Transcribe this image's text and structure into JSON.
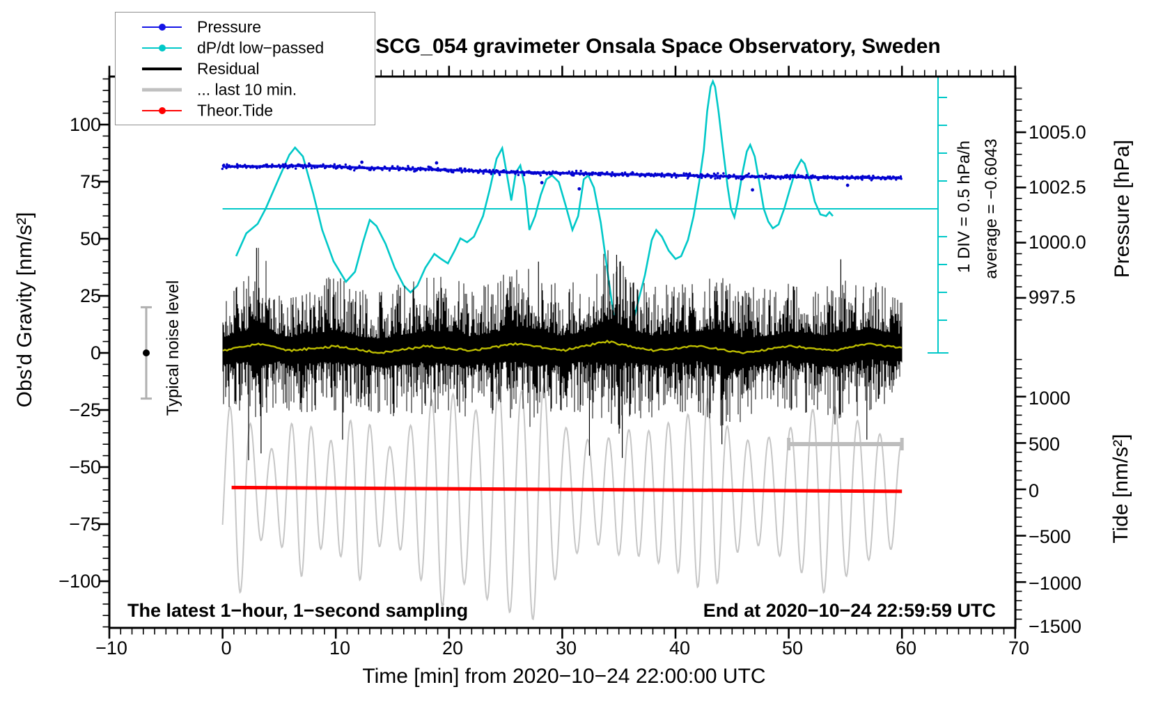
{
  "title": "SCG_054 gravimeter Onsala Space Observatory, Sweden",
  "legend": {
    "items": [
      {
        "label": "Pressure",
        "color": "#1414e6",
        "marker": "dot"
      },
      {
        "label": "dP/dt low−passed",
        "color": "#00c8c8",
        "marker": "dot"
      },
      {
        "label": "Residual",
        "color": "#000000",
        "marker": "line"
      },
      {
        "label": "... last 10 min.",
        "color": "#c0c0c0",
        "marker": "line"
      },
      {
        "label": "Theor.Tide",
        "color": "#ff0000",
        "marker": "dot"
      }
    ]
  },
  "axes": {
    "x": {
      "title": "Time [min] from 2020−10−24 22:00:00 UTC",
      "tick_labels": [
        "−10",
        "0",
        "10",
        "20",
        "30",
        "40",
        "50",
        "60",
        "70"
      ],
      "range": [
        -10,
        70
      ],
      "major_interval": 10,
      "minor_interval": 1
    },
    "gravity": {
      "title": "Obs'd Gravity [nm/s²]",
      "tick_labels": [
        "100",
        "75",
        "50",
        "25",
        "0",
        "−25",
        "−50",
        "−75",
        "−100"
      ],
      "range": [
        -121,
        121
      ],
      "major_interval": 25,
      "minor_interval": 5
    },
    "pressure": {
      "title": "Pressure [hPa]",
      "tick_labels": [
        "1005.0",
        "1002.5",
        "1000.0",
        "997.5"
      ],
      "major_interval": 2.5,
      "minor_interval": 0.5
    },
    "tide": {
      "title": "Tide [nm/s²]",
      "tick_labels": [
        "1000",
        "500",
        "0",
        "−500",
        "−1000",
        "−1500"
      ],
      "major_interval": 500,
      "minor_interval": 100
    }
  },
  "annotations": {
    "noise_level_label": "Typical noise level",
    "div_label": "1 DIV = 0.5 hPa/h",
    "average_label": "average = −0.6043",
    "sampling_label": "The latest 1−hour, 1−second sampling",
    "end_label": "End at 2020−10−24 22:59:59 UTC"
  },
  "colors": {
    "pressure_line": "#1414e6",
    "pressure_dots": "#0000cd",
    "dpdt": "#00c8c8",
    "residual": "#000000",
    "residual_lowpass": "#bcbc00",
    "last10": "#c6c6c6",
    "tide": "#ff0000",
    "noise_bar": "#b0b0b0",
    "scale_bar": "#bdbdbd",
    "frame": "#000000"
  },
  "chart_data": {
    "type": "line",
    "xlabel": "Time [min] from 2020-10-24 22:00:00 UTC",
    "x_range": [
      -10,
      70
    ],
    "gravity_range": [
      -121,
      121
    ],
    "pressure_ticks": [
      1005.0,
      1002.5,
      1000.0,
      997.5
    ],
    "tide_ticks": [
      1000,
      500,
      0,
      -500,
      -1000,
      -1500
    ],
    "dpdt_div_hpa_per_h": 0.5,
    "dpdt_average_hpa_per_h": -0.6043,
    "noise_level_nm_s2": 20,
    "last10_bar_minutes": [
      50,
      60
    ],
    "series": {
      "pressure_hpa": {
        "t_start": 0,
        "t_step": 1,
        "values": [
          1003.44,
          1003.45,
          1003.46,
          1003.45,
          1003.46,
          1003.47,
          1003.47,
          1003.48,
          1003.48,
          1003.47,
          1003.45,
          1003.42,
          1003.4,
          1003.38,
          1003.37,
          1003.36,
          1003.35,
          1003.34,
          1003.33,
          1003.31,
          1003.29,
          1003.27,
          1003.25,
          1003.23,
          1003.21,
          1003.19,
          1003.18,
          1003.18,
          1003.17,
          1003.16,
          1003.15,
          1003.14,
          1003.13,
          1003.12,
          1003.11,
          1003.1,
          1003.09,
          1003.08,
          1003.07,
          1003.06,
          1003.05,
          1003.04,
          1003.03,
          1003.02,
          1003.01,
          1003.0,
          1002.99,
          1002.99,
          1002.98,
          1002.98,
          1002.97,
          1002.97,
          1002.96,
          1002.96,
          1002.95,
          1002.95,
          1002.94,
          1002.94,
          1002.93,
          1002.93,
          1002.93
        ],
        "outlier_dots_t_dhpa": [
          [
            12.3,
            0.25
          ],
          [
            18.9,
            0.3
          ],
          [
            28.2,
            -0.45
          ],
          [
            31.5,
            -0.7
          ],
          [
            46.8,
            -0.6
          ],
          [
            55.2,
            -0.35
          ]
        ]
      },
      "dpdt_hpa_per_h": [
        [
          1.2,
          -0.85
        ],
        [
          2.1,
          -0.44
        ],
        [
          3.1,
          -0.27
        ],
        [
          3.8,
          0.0
        ],
        [
          5.0,
          0.56
        ],
        [
          5.9,
          0.97
        ],
        [
          6.4,
          1.1
        ],
        [
          7.1,
          0.94
        ],
        [
          8.0,
          0.28
        ],
        [
          8.8,
          -0.38
        ],
        [
          9.8,
          -0.94
        ],
        [
          10.9,
          -1.31
        ],
        [
          11.7,
          -1.13
        ],
        [
          12.4,
          -0.6
        ],
        [
          13.0,
          -0.2
        ],
        [
          13.6,
          -0.31
        ],
        [
          14.4,
          -0.63
        ],
        [
          15.2,
          -1.06
        ],
        [
          16.0,
          -1.38
        ],
        [
          16.6,
          -1.5
        ],
        [
          17.2,
          -1.38
        ],
        [
          17.9,
          -1.06
        ],
        [
          18.7,
          -0.81
        ],
        [
          19.3,
          -0.9
        ],
        [
          19.9,
          -0.98
        ],
        [
          20.5,
          -0.75
        ],
        [
          21.0,
          -0.53
        ],
        [
          21.6,
          -0.6
        ],
        [
          22.2,
          -0.5
        ],
        [
          23.0,
          -0.13
        ],
        [
          23.6,
          0.35
        ],
        [
          24.2,
          0.9
        ],
        [
          24.7,
          1.09
        ],
        [
          25.1,
          0.63
        ],
        [
          25.5,
          0.15
        ],
        [
          25.9,
          0.65
        ],
        [
          26.3,
          0.78
        ],
        [
          26.7,
          0.4
        ],
        [
          27.1,
          -0.38
        ],
        [
          27.6,
          -0.13
        ],
        [
          28.1,
          0.25
        ],
        [
          28.6,
          0.53
        ],
        [
          29.1,
          0.6
        ],
        [
          29.7,
          0.48
        ],
        [
          30.3,
          0.06
        ],
        [
          30.9,
          -0.38
        ],
        [
          31.4,
          -0.13
        ],
        [
          31.9,
          0.53
        ],
        [
          32.3,
          0.6
        ],
        [
          32.8,
          0.38
        ],
        [
          33.4,
          -0.25
        ],
        [
          34.0,
          -1.13
        ],
        [
          34.6,
          -2.0
        ],
        [
          35.1,
          -2.38
        ],
        [
          35.5,
          -2.46
        ],
        [
          36.0,
          -2.25
        ],
        [
          36.6,
          -1.75
        ],
        [
          37.3,
          -1.19
        ],
        [
          37.9,
          -0.56
        ],
        [
          38.3,
          -0.38
        ],
        [
          38.8,
          -0.5
        ],
        [
          39.4,
          -0.75
        ],
        [
          40.0,
          -0.9
        ],
        [
          40.5,
          -0.85
        ],
        [
          41.1,
          -0.56
        ],
        [
          41.6,
          -0.13
        ],
        [
          42.1,
          0.48
        ],
        [
          42.5,
          1.06
        ],
        [
          42.8,
          1.75
        ],
        [
          43.1,
          2.19
        ],
        [
          43.3,
          2.29
        ],
        [
          43.5,
          2.19
        ],
        [
          43.8,
          1.75
        ],
        [
          44.2,
          1.06
        ],
        [
          44.6,
          0.4
        ],
        [
          44.9,
          0.0
        ],
        [
          45.2,
          -0.15
        ],
        [
          45.5,
          0.13
        ],
        [
          45.9,
          0.63
        ],
        [
          46.3,
          1.03
        ],
        [
          46.6,
          1.15
        ],
        [
          47.0,
          0.94
        ],
        [
          47.4,
          0.48
        ],
        [
          47.8,
          0.0
        ],
        [
          48.2,
          -0.23
        ],
        [
          48.6,
          -0.35
        ],
        [
          49.1,
          -0.28
        ],
        [
          49.6,
          0.0
        ],
        [
          50.1,
          0.35
        ],
        [
          50.6,
          0.69
        ],
        [
          51.1,
          0.88
        ],
        [
          51.4,
          0.81
        ],
        [
          51.9,
          0.48
        ],
        [
          52.3,
          0.13
        ],
        [
          52.8,
          -0.1
        ],
        [
          53.3,
          -0.13
        ],
        [
          53.6,
          -0.06
        ],
        [
          53.9,
          -0.13
        ]
      ],
      "residual_nm_s2": {
        "mean": 2,
        "seed": 7,
        "envelope_halfwidth": [
          [
            0,
            26
          ],
          [
            2,
            30
          ],
          [
            3,
            46
          ],
          [
            4,
            36
          ],
          [
            5,
            26
          ],
          [
            7,
            28
          ],
          [
            9,
            30
          ],
          [
            10,
            32
          ],
          [
            12,
            26
          ],
          [
            14,
            28
          ],
          [
            16,
            30
          ],
          [
            18,
            30
          ],
          [
            20,
            32
          ],
          [
            22,
            28
          ],
          [
            24,
            30
          ],
          [
            26,
            34
          ],
          [
            27,
            36
          ],
          [
            28,
            34
          ],
          [
            30,
            28
          ],
          [
            32,
            30
          ],
          [
            34,
            44
          ],
          [
            35,
            40
          ],
          [
            36,
            32
          ],
          [
            38,
            30
          ],
          [
            40,
            28
          ],
          [
            42,
            30
          ],
          [
            44,
            34
          ],
          [
            45,
            32
          ],
          [
            47,
            28
          ],
          [
            49,
            26
          ],
          [
            51,
            30
          ],
          [
            53,
            28
          ],
          [
            54,
            34
          ],
          [
            55,
            32
          ],
          [
            57,
            30
          ],
          [
            59,
            28
          ],
          [
            60,
            26
          ]
        ],
        "spikes_t_value": [
          [
            2.3,
            -47
          ],
          [
            3.0,
            46
          ],
          [
            3.4,
            -44
          ],
          [
            10.6,
            -38
          ],
          [
            27.9,
            40
          ],
          [
            32.4,
            -45
          ],
          [
            34.8,
            43
          ],
          [
            35.3,
            -46
          ],
          [
            44.1,
            -40
          ],
          [
            54.6,
            41
          ],
          [
            56.9,
            -38
          ]
        ]
      },
      "residual_lowpass_nm_s2": [
        [
          0,
          1
        ],
        [
          3,
          4
        ],
        [
          6,
          1
        ],
        [
          10,
          3
        ],
        [
          14,
          0
        ],
        [
          18,
          3
        ],
        [
          22,
          1
        ],
        [
          26,
          4
        ],
        [
          30,
          1
        ],
        [
          34,
          5
        ],
        [
          38,
          1
        ],
        [
          42,
          3
        ],
        [
          46,
          0
        ],
        [
          50,
          3
        ],
        [
          54,
          1
        ],
        [
          57,
          4
        ],
        [
          60,
          2
        ]
      ],
      "theor_tide_nm_s2": [
        [
          0.8,
          20
        ],
        [
          60,
          -22
        ]
      ],
      "last10_residual_tide_scale": {
        "seed": 11,
        "period_min": 1.84,
        "center": 0,
        "amplitude_envelope": [
          [
            0,
            700
          ],
          [
            1,
            1000
          ],
          [
            2,
            900
          ],
          [
            3,
            500
          ],
          [
            4,
            420
          ],
          [
            5,
            480
          ],
          [
            6,
            700
          ],
          [
            7,
            800
          ],
          [
            8,
            650
          ],
          [
            9,
            500
          ],
          [
            10,
            550
          ],
          [
            11,
            700
          ],
          [
            12,
            850
          ],
          [
            13,
            700
          ],
          [
            14,
            500
          ],
          [
            15,
            450
          ],
          [
            16,
            600
          ],
          [
            17,
            750
          ],
          [
            18,
            900
          ],
          [
            19,
            1050
          ],
          [
            20,
            1100
          ],
          [
            21,
            900
          ],
          [
            22,
            800
          ],
          [
            23,
            950
          ],
          [
            24,
            1100
          ],
          [
            25,
            1200
          ],
          [
            26,
            1000
          ],
          [
            27,
            1150
          ],
          [
            28,
            1250
          ],
          [
            29,
            900
          ],
          [
            30,
            700
          ],
          [
            31,
            600
          ],
          [
            32,
            550
          ],
          [
            33,
            500
          ],
          [
            34,
            550
          ],
          [
            35,
            600
          ],
          [
            36,
            650
          ],
          [
            37,
            600
          ],
          [
            38,
            650
          ],
          [
            39,
            700
          ],
          [
            40,
            750
          ],
          [
            41,
            800
          ],
          [
            42,
            900
          ],
          [
            43,
            1000
          ],
          [
            44,
            800
          ],
          [
            45,
            600
          ],
          [
            46,
            550
          ],
          [
            47,
            500
          ],
          [
            48,
            550
          ],
          [
            49,
            600
          ],
          [
            50,
            650
          ],
          [
            51,
            750
          ],
          [
            52,
            850
          ],
          [
            53,
            950
          ],
          [
            54,
            900
          ],
          [
            55,
            800
          ],
          [
            56,
            750
          ],
          [
            57,
            650
          ],
          [
            58,
            600
          ],
          [
            59,
            550
          ],
          [
            60,
            500
          ]
        ]
      }
    }
  }
}
